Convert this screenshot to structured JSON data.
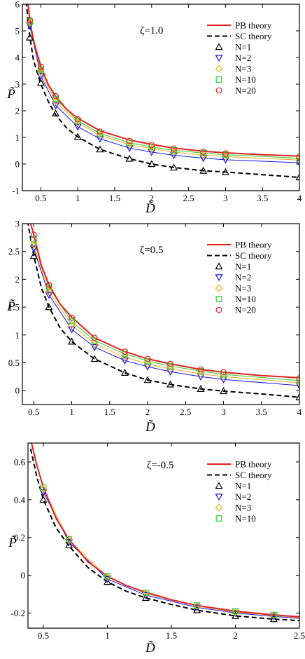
{
  "chart_data": [
    {
      "type": "line",
      "annotation": "ζ=1.0",
      "xlabel": "D̃",
      "ylabel": "P̃",
      "xlim": [
        0.25,
        4.0
      ],
      "ylim": [
        -1.0,
        6.0
      ],
      "xticks": [
        0.5,
        1,
        1.5,
        2,
        2.5,
        3,
        3.5,
        4
      ],
      "xtick_labels": [
        "0.5",
        "1",
        "1.5",
        "2",
        "2.5",
        "3",
        "3.5",
        "4"
      ],
      "yticks": [
        -1,
        0,
        1,
        2,
        3,
        4,
        5,
        6
      ],
      "ytick_labels": [
        "-1",
        "0",
        "1",
        "2",
        "3",
        "4",
        "5",
        "6"
      ],
      "legend_position": "top-right",
      "theory": [
        {
          "name": "PB theory",
          "style": "solid",
          "color": "#e32020",
          "x": [
            0.3,
            0.35,
            0.4,
            0.5,
            0.6,
            0.7,
            0.85,
            1.0,
            1.3,
            1.7,
            2.0,
            2.3,
            2.7,
            3.0,
            3.5,
            4.0
          ],
          "y": [
            6.6,
            5.45,
            4.6,
            3.68,
            2.98,
            2.55,
            2.05,
            1.72,
            1.25,
            0.9,
            0.74,
            0.6,
            0.48,
            0.42,
            0.35,
            0.3
          ]
        },
        {
          "name": "SC theory",
          "style": "dashed",
          "color": "#000000",
          "x": [
            0.3,
            0.35,
            0.4,
            0.5,
            0.6,
            0.7,
            0.85,
            1.0,
            1.3,
            1.7,
            2.0,
            2.3,
            2.7,
            3.0,
            3.5,
            4.0
          ],
          "y": [
            6.1,
            4.8,
            3.9,
            3.0,
            2.35,
            1.85,
            1.35,
            1.02,
            0.55,
            0.2,
            0.0,
            -0.13,
            -0.25,
            -0.3,
            -0.4,
            -0.5
          ]
        }
      ],
      "fits": [
        {
          "color": "#1515e6",
          "x": [
            0.35,
            0.5,
            0.7,
            1.0,
            1.3,
            1.7,
            2.0,
            2.3,
            2.7,
            3.0,
            4.0
          ],
          "y": [
            5.2,
            3.3,
            2.2,
            1.4,
            0.95,
            0.6,
            0.45,
            0.33,
            0.22,
            0.16,
            0.05
          ]
        },
        {
          "color": "#f2a91b",
          "x": [
            0.35,
            0.5,
            0.7,
            1.0,
            1.3,
            1.7,
            2.0,
            2.3,
            2.7,
            3.0,
            4.0
          ],
          "y": [
            5.3,
            3.45,
            2.35,
            1.55,
            1.08,
            0.72,
            0.58,
            0.45,
            0.34,
            0.28,
            0.15
          ]
        },
        {
          "color": "#33cc33",
          "x": [
            0.35,
            0.5,
            0.7,
            1.0,
            1.3,
            1.7,
            2.0,
            2.3,
            2.7,
            3.0,
            4.0
          ],
          "y": [
            5.35,
            3.55,
            2.45,
            1.62,
            1.15,
            0.8,
            0.64,
            0.52,
            0.41,
            0.35,
            0.22
          ]
        }
      ],
      "series": [
        {
          "name": "N=1",
          "marker": "triangle-up",
          "color": "#000000",
          "x": [
            0.35,
            0.5,
            0.7,
            1.0,
            1.3,
            1.7,
            2.0,
            2.3,
            2.7,
            3.0,
            4.0
          ],
          "y": [
            4.75,
            3.05,
            1.9,
            1.02,
            0.55,
            0.2,
            0.0,
            -0.13,
            -0.25,
            -0.3,
            -0.5
          ]
        },
        {
          "name": "N=2",
          "marker": "triangle-down",
          "color": "#1515e6",
          "x": [
            0.35,
            0.5,
            0.7,
            1.0,
            1.3,
            1.7,
            2.0,
            2.3,
            2.7,
            3.0,
            4.0
          ],
          "y": [
            5.2,
            3.3,
            2.2,
            1.4,
            0.95,
            0.6,
            0.45,
            0.33,
            0.22,
            0.16,
            0.05
          ]
        },
        {
          "name": "N=3",
          "marker": "diamond",
          "color": "#f2a91b",
          "x": [
            0.35,
            0.5,
            0.7,
            1.0,
            1.3,
            1.7,
            2.0,
            2.3,
            2.7,
            3.0,
            4.0
          ],
          "y": [
            5.3,
            3.45,
            2.35,
            1.55,
            1.08,
            0.72,
            0.58,
            0.45,
            0.34,
            0.28,
            0.15
          ]
        },
        {
          "name": "N=10",
          "marker": "square",
          "color": "#33cc33",
          "x": [
            0.35,
            0.5,
            0.7,
            1.0,
            1.3,
            1.7,
            2.0,
            2.3,
            2.7,
            3.0,
            4.0
          ],
          "y": [
            5.35,
            3.55,
            2.45,
            1.62,
            1.15,
            0.8,
            0.64,
            0.52,
            0.41,
            0.35,
            0.22
          ]
        },
        {
          "name": "N=20",
          "marker": "circle",
          "color": "#e32020",
          "x": [
            0.35,
            0.5,
            0.7,
            1.0,
            1.3,
            1.7,
            2.0,
            2.3,
            2.7,
            3.0,
            4.0
          ],
          "y": [
            5.4,
            3.65,
            2.55,
            1.68,
            1.22,
            0.87,
            0.71,
            0.58,
            0.46,
            0.4,
            0.27
          ]
        }
      ]
    },
    {
      "type": "line",
      "annotation": "ζ=0.5",
      "xlabel": "D̃",
      "ylabel": "P̃",
      "xlim": [
        0.35,
        4.0
      ],
      "ylim": [
        -0.25,
        3.0
      ],
      "xticks": [
        0.5,
        1,
        1.5,
        2,
        2.5,
        3,
        3.5,
        4
      ],
      "xtick_labels": [
        "0.5",
        "1",
        "1.5",
        "2",
        "2.5",
        "3",
        "3.5",
        "4"
      ],
      "yticks": [
        0,
        0.5,
        1,
        1.5,
        2,
        2.5,
        3
      ],
      "ytick_labels": [
        "0",
        "0.5",
        "1",
        "1.5",
        "2",
        "2.5",
        "3"
      ],
      "legend_position": "top-right",
      "theory": [
        {
          "name": "PB theory",
          "style": "solid",
          "color": "#e32020",
          "x": [
            0.42,
            0.45,
            0.5,
            0.6,
            0.7,
            0.85,
            1.0,
            1.3,
            1.7,
            2.0,
            2.3,
            2.7,
            3.0,
            3.5,
            4.0
          ],
          "y": [
            3.3,
            3.05,
            2.8,
            2.25,
            1.9,
            1.55,
            1.32,
            0.95,
            0.7,
            0.57,
            0.48,
            0.38,
            0.33,
            0.27,
            0.23
          ]
        },
        {
          "name": "SC theory",
          "style": "dashed",
          "color": "#000000",
          "x": [
            0.42,
            0.45,
            0.5,
            0.6,
            0.7,
            0.85,
            1.0,
            1.3,
            1.7,
            2.0,
            2.3,
            2.7,
            3.0,
            3.5,
            4.0
          ],
          "y": [
            3.05,
            2.8,
            2.42,
            1.85,
            1.5,
            1.12,
            0.88,
            0.57,
            0.32,
            0.19,
            0.11,
            0.03,
            -0.01,
            -0.06,
            -0.12
          ]
        }
      ],
      "fits": [
        {
          "color": "#1515e6",
          "x": [
            0.5,
            0.7,
            1.0,
            1.3,
            1.7,
            2.0,
            2.3,
            2.7,
            3.0,
            4.0
          ],
          "y": [
            2.55,
            1.72,
            1.1,
            0.78,
            0.54,
            0.43,
            0.34,
            0.25,
            0.2,
            0.09
          ]
        },
        {
          "color": "#f2a91b",
          "x": [
            0.5,
            0.7,
            1.0,
            1.3,
            1.7,
            2.0,
            2.3,
            2.7,
            3.0,
            4.0
          ],
          "y": [
            2.62,
            1.78,
            1.18,
            0.84,
            0.6,
            0.48,
            0.39,
            0.3,
            0.25,
            0.14
          ]
        },
        {
          "color": "#33cc33",
          "x": [
            0.5,
            0.7,
            1.0,
            1.3,
            1.7,
            2.0,
            2.3,
            2.7,
            3.0,
            4.0
          ],
          "y": [
            2.7,
            1.85,
            1.24,
            0.9,
            0.66,
            0.53,
            0.44,
            0.35,
            0.29,
            0.18
          ]
        }
      ],
      "series": [
        {
          "name": "N=1",
          "marker": "triangle-up",
          "color": "#000000",
          "x": [
            0.5,
            0.7,
            1.0,
            1.3,
            1.7,
            2.0,
            2.3,
            2.7,
            3.0,
            4.0
          ],
          "y": [
            2.42,
            1.5,
            0.88,
            0.57,
            0.32,
            0.19,
            0.11,
            0.03,
            -0.01,
            -0.12
          ]
        },
        {
          "name": "N=2",
          "marker": "triangle-down",
          "color": "#1515e6",
          "x": [
            0.5,
            0.7,
            1.0,
            1.3,
            1.7,
            2.0,
            2.3,
            2.7,
            3.0,
            4.0
          ],
          "y": [
            2.55,
            1.72,
            1.1,
            0.78,
            0.54,
            0.43,
            0.34,
            0.25,
            0.2,
            0.09
          ]
        },
        {
          "name": "N=3",
          "marker": "diamond",
          "color": "#f2a91b",
          "x": [
            0.5,
            0.7,
            1.0,
            1.3,
            1.7,
            2.0,
            2.3,
            2.7,
            3.0,
            4.0
          ],
          "y": [
            2.62,
            1.78,
            1.18,
            0.84,
            0.6,
            0.48,
            0.39,
            0.3,
            0.25,
            0.14
          ]
        },
        {
          "name": "N=10",
          "marker": "square",
          "color": "#33cc33",
          "x": [
            0.5,
            0.7,
            1.0,
            1.3,
            1.7,
            2.0,
            2.3,
            2.7,
            3.0,
            4.0
          ],
          "y": [
            2.72,
            1.86,
            1.25,
            0.9,
            0.66,
            0.53,
            0.44,
            0.35,
            0.29,
            0.18
          ]
        },
        {
          "name": "N=20",
          "marker": "circle",
          "color": "#e32020",
          "x": [
            0.5,
            0.7,
            1.0,
            1.3,
            1.7,
            2.0,
            2.3,
            2.7,
            3.0,
            4.0
          ],
          "y": [
            2.8,
            1.9,
            1.31,
            0.95,
            0.7,
            0.57,
            0.48,
            0.38,
            0.33,
            0.22
          ]
        }
      ]
    },
    {
      "type": "line",
      "annotation": "ζ=-0.5",
      "xlabel": "D̃",
      "ylabel": "P̃",
      "xlim": [
        0.38,
        2.5
      ],
      "ylim": [
        -0.28,
        0.7
      ],
      "xticks": [
        0.5,
        1,
        1.5,
        2,
        2.5
      ],
      "xtick_labels": [
        "0.5",
        "1",
        "1.5",
        "2",
        "2.5"
      ],
      "yticks": [
        -0.2,
        0,
        0.2,
        0.4,
        0.6
      ],
      "ytick_labels": [
        "-0.2",
        "0",
        "0.2",
        "0.4",
        "0.6"
      ],
      "legend_position": "top-right",
      "theory": [
        {
          "name": "PB theory",
          "style": "solid",
          "color": "#e32020",
          "x": [
            0.4,
            0.45,
            0.5,
            0.6,
            0.7,
            0.85,
            1.0,
            1.15,
            1.3,
            1.5,
            1.7,
            2.0,
            2.3,
            2.5
          ],
          "y": [
            0.72,
            0.58,
            0.465,
            0.3,
            0.19,
            0.07,
            -0.005,
            -0.055,
            -0.09,
            -0.13,
            -0.16,
            -0.19,
            -0.21,
            -0.22
          ]
        },
        {
          "name": "SC theory",
          "style": "dashed",
          "color": "#000000",
          "x": [
            0.4,
            0.45,
            0.5,
            0.6,
            0.7,
            0.85,
            1.0,
            1.15,
            1.3,
            1.5,
            1.7,
            2.0,
            2.3,
            2.5
          ],
          "y": [
            0.67,
            0.52,
            0.4,
            0.25,
            0.155,
            0.04,
            -0.035,
            -0.085,
            -0.12,
            -0.155,
            -0.185,
            -0.215,
            -0.232,
            -0.24
          ]
        }
      ],
      "fits": [
        {
          "color": "#1515e6",
          "x": [
            0.5,
            0.7,
            1.0,
            1.3,
            1.7,
            2.0,
            2.3,
            2.5
          ],
          "y": [
            0.44,
            0.175,
            -0.02,
            -0.105,
            -0.17,
            -0.2,
            -0.218,
            -0.228
          ]
        },
        {
          "color": "#f2a91b",
          "x": [
            0.5,
            0.7,
            1.0,
            1.3,
            1.7,
            2.0,
            2.3,
            2.5
          ],
          "y": [
            0.455,
            0.185,
            -0.01,
            -0.097,
            -0.163,
            -0.195,
            -0.213,
            -0.224
          ]
        }
      ],
      "series": [
        {
          "name": "N=1",
          "marker": "triangle-up",
          "color": "#000000",
          "x": [
            0.5,
            0.7,
            1.0,
            1.3,
            1.7,
            2.0,
            2.3
          ],
          "y": [
            0.4,
            0.16,
            -0.035,
            -0.12,
            -0.185,
            -0.215,
            -0.232
          ]
        },
        {
          "name": "N=2",
          "marker": "triangle-down",
          "color": "#1515e6",
          "x": [
            0.5,
            0.7,
            1.0,
            1.3,
            1.7,
            2.0,
            2.3
          ],
          "y": [
            0.44,
            0.175,
            -0.02,
            -0.105,
            -0.17,
            -0.2,
            -0.218
          ]
        },
        {
          "name": "N=3",
          "marker": "diamond",
          "color": "#f2a91b",
          "x": [
            0.5,
            0.7,
            1.0,
            1.3,
            1.7,
            2.0,
            2.3
          ],
          "y": [
            0.455,
            0.185,
            -0.01,
            -0.097,
            -0.163,
            -0.195,
            -0.213
          ]
        },
        {
          "name": "N=10",
          "marker": "square",
          "color": "#33cc33",
          "x": [
            0.5,
            0.7,
            1.0,
            1.3,
            1.7,
            2.0,
            2.3
          ],
          "y": [
            0.465,
            0.19,
            -0.005,
            -0.093,
            -0.16,
            -0.19,
            -0.21
          ]
        }
      ]
    }
  ]
}
